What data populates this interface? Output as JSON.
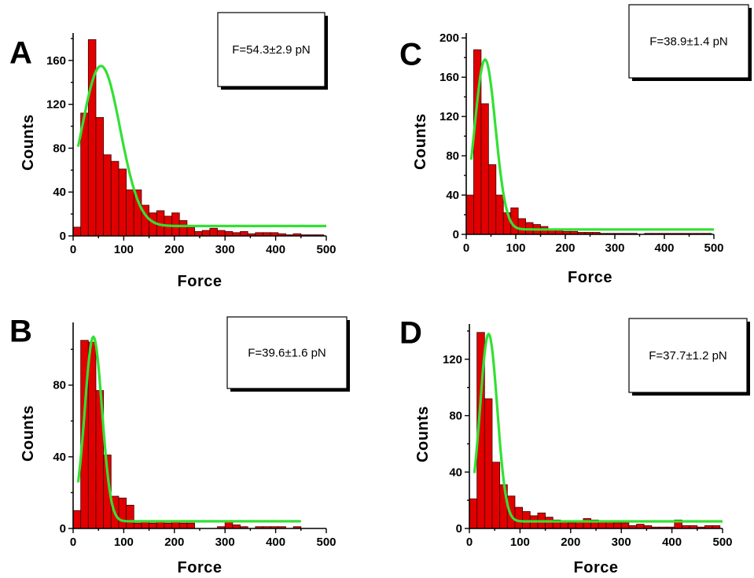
{
  "chart_data": [
    {
      "panel": "A",
      "type": "bar",
      "annotation": "F=54.3±2.9 pN",
      "xlabel": "Force",
      "ylabel": "Counts",
      "xlim": [
        0,
        500
      ],
      "ylim": [
        0,
        185
      ],
      "xticks": [
        0,
        100,
        200,
        300,
        400,
        500
      ],
      "yticks": [
        0,
        40,
        80,
        120,
        160
      ],
      "bin_width": 15,
      "bin_start": 0,
      "values": [
        8,
        112,
        179,
        108,
        74,
        68,
        61,
        42,
        42,
        28,
        21,
        23,
        18,
        21,
        14,
        8,
        4,
        5,
        7,
        5,
        4,
        3,
        4,
        2,
        3,
        3,
        3,
        2,
        1,
        2,
        1,
        1,
        1
      ],
      "fit": {
        "x0": 55,
        "width": 38,
        "amplitude": 146,
        "baseline": 9,
        "x_range": [
          10,
          500
        ]
      }
    },
    {
      "panel": "C",
      "type": "bar",
      "annotation": "F=38.9±1.4 pN",
      "xlabel": "Force",
      "ylabel": "Counts",
      "xlim": [
        0,
        500
      ],
      "ylim": [
        0,
        205
      ],
      "xticks": [
        0,
        100,
        200,
        300,
        400,
        500
      ],
      "yticks": [
        0,
        40,
        80,
        120,
        160,
        200
      ],
      "bin_width": 15,
      "bin_start": 0,
      "values": [
        40,
        188,
        133,
        71,
        40,
        22,
        27,
        16,
        12,
        10,
        8,
        5,
        4,
        3,
        3,
        2,
        2,
        2,
        1,
        1,
        1,
        1,
        1,
        0,
        1,
        1,
        1,
        1,
        1,
        1,
        1,
        1,
        1
      ],
      "fit": {
        "x0": 38,
        "width": 21,
        "amplitude": 173,
        "baseline": 5,
        "x_range": [
          10,
          500
        ]
      }
    },
    {
      "panel": "B",
      "type": "bar",
      "annotation": "F=39.6±1.6 pN",
      "xlabel": "Force",
      "ylabel": "Counts",
      "xlim": [
        0,
        500
      ],
      "ylim": [
        0,
        115
      ],
      "xticks": [
        0,
        100,
        200,
        300,
        400,
        500
      ],
      "yticks": [
        0,
        40,
        80
      ],
      "bin_width": 15,
      "bin_start": 0,
      "values": [
        10,
        105,
        104,
        77,
        41,
        18,
        17,
        13,
        3,
        4,
        3,
        4,
        3,
        4,
        3,
        3,
        0,
        0,
        0,
        1,
        4,
        2,
        1,
        0,
        1,
        1,
        1,
        1,
        0,
        1
      ],
      "fit": {
        "x0": 40,
        "width": 17,
        "amplitude": 103,
        "baseline": 4,
        "x_range": [
          10,
          450
        ]
      }
    },
    {
      "panel": "D",
      "type": "bar",
      "annotation": "F=37.7±1.2 pN",
      "xlabel": "Force",
      "ylabel": "Counts",
      "xlim": [
        0,
        500
      ],
      "ylim": [
        0,
        145
      ],
      "xticks": [
        0,
        100,
        200,
        300,
        400,
        500
      ],
      "yticks": [
        0,
        40,
        80,
        120
      ],
      "bin_width": 15,
      "bin_start": 0,
      "values": [
        21,
        139,
        92,
        47,
        31,
        23,
        15,
        12,
        9,
        11,
        8,
        6,
        5,
        4,
        5,
        7,
        6,
        5,
        5,
        4,
        4,
        2,
        3,
        2,
        1,
        1,
        1,
        6,
        2,
        2,
        1,
        2,
        2
      ],
      "fit": {
        "x0": 38,
        "width": 17,
        "amplitude": 133,
        "baseline": 5,
        "x_range": [
          10,
          500
        ]
      }
    }
  ],
  "colors": {
    "bar_fill": "#e00000",
    "fit_line": "#33e033"
  }
}
